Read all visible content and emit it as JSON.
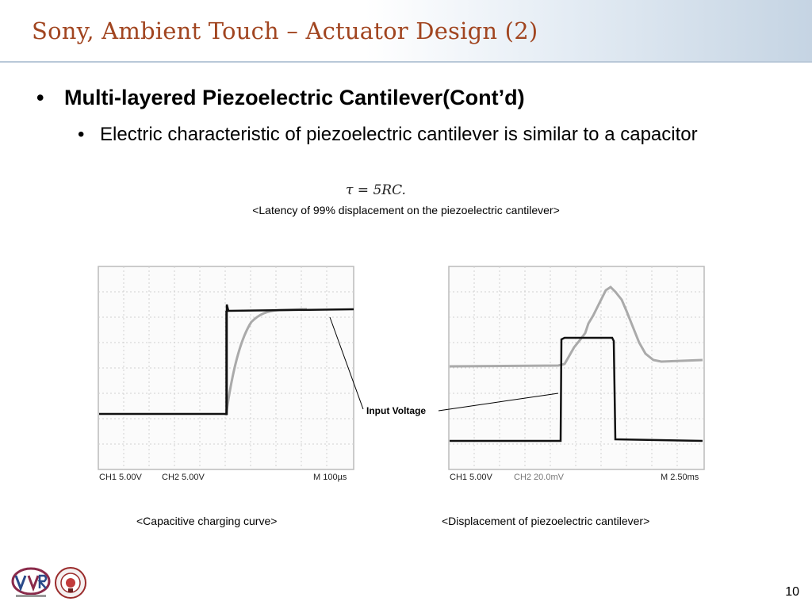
{
  "slide": {
    "title": "Sony, Ambient Touch – Actuator Design (2)",
    "bullet_main": "Multi-layered Piezoelectric Cantilever(Cont’d)",
    "bullet_sub": "Electric characteristic of piezoelectric cantilever is similar to a capacitor",
    "bullet_char": "•",
    "formula": "τ = 5RC.",
    "caption_top": "<Latency of 99% displacement on the piezoelectric cantilever>",
    "caption_left": "<Capacitive charging curve>",
    "caption_right": "<Displacement of piezoelectric cantilever>",
    "annotation": "Input Voltage",
    "page_number": "10"
  },
  "scope_left": {
    "ch1": "CH1 5.00V",
    "ch2": "CH2 5.00V",
    "time": "M 100µs"
  },
  "scope_right": {
    "ch1": "CH1 5.00V",
    "ch2": "CH2 20.0mV",
    "time": "M 2.50ms"
  },
  "colors": {
    "title": "#a14520",
    "trace_black": "#111111",
    "trace_gray": "#aaaaaa",
    "grid": "#cccccc"
  },
  "logos": [
    "hvr-logo",
    "university-seal"
  ]
}
